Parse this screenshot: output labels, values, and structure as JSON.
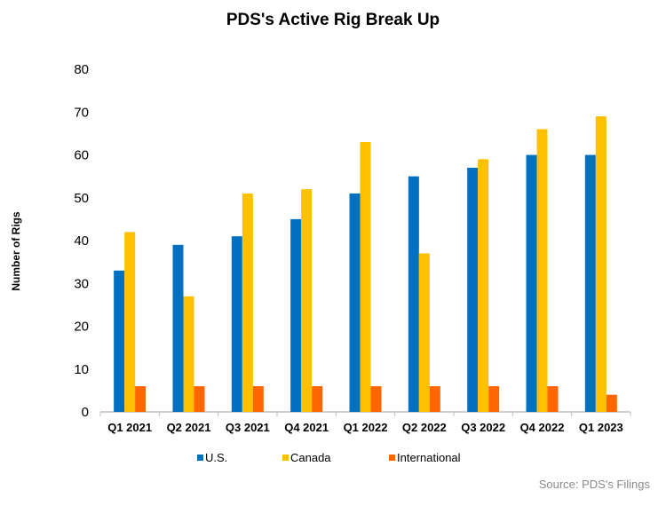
{
  "chart_data": {
    "type": "bar",
    "title": "PDS's Active Rig Break Up",
    "xlabel": "",
    "ylabel": "Number of Rigs",
    "ylim": [
      0,
      80
    ],
    "yticks": [
      0,
      10,
      20,
      30,
      40,
      50,
      60,
      70,
      80
    ],
    "grid": false,
    "legend_placement": "bottom",
    "categories": [
      "Q1 2021",
      "Q2 2021",
      "Q3 2021",
      "Q4 2021",
      "Q1 2022",
      "Q2 2022",
      "Q3 2022",
      "Q4 2022",
      "Q1 2023"
    ],
    "series": [
      {
        "name": "U.S.",
        "color": "#0070C0",
        "values": [
          33,
          39,
          41,
          45,
          51,
          55,
          57,
          60,
          60
        ]
      },
      {
        "name": "Canada",
        "color": "#FFC000",
        "values": [
          42,
          27,
          51,
          52,
          63,
          37,
          59,
          66,
          69
        ]
      },
      {
        "name": "International",
        "color": "#FF6600",
        "values": [
          6,
          6,
          6,
          6,
          6,
          6,
          6,
          6,
          4
        ]
      }
    ],
    "source": "Source: PDS's Filings"
  }
}
